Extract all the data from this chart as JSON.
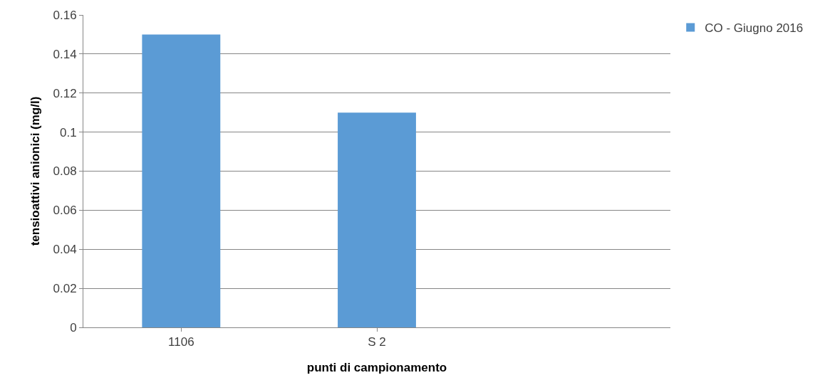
{
  "chart_data": {
    "type": "bar",
    "categories": [
      "1106",
      "S 2",
      null
    ],
    "series": [
      {
        "name": "CO - Giugno 2016",
        "color": "#5b9bd5",
        "values": [
          0.15,
          0.11,
          null
        ]
      }
    ],
    "xlabel": "punti di campionamento",
    "ylabel": "tensioattivi anionici (mg/l)",
    "ylim": [
      0,
      0.16
    ],
    "yticks": [
      0,
      0.02,
      0.04,
      0.06,
      0.08,
      0.1,
      0.12,
      0.14,
      0.16
    ],
    "grid": "y",
    "legend": "right"
  }
}
